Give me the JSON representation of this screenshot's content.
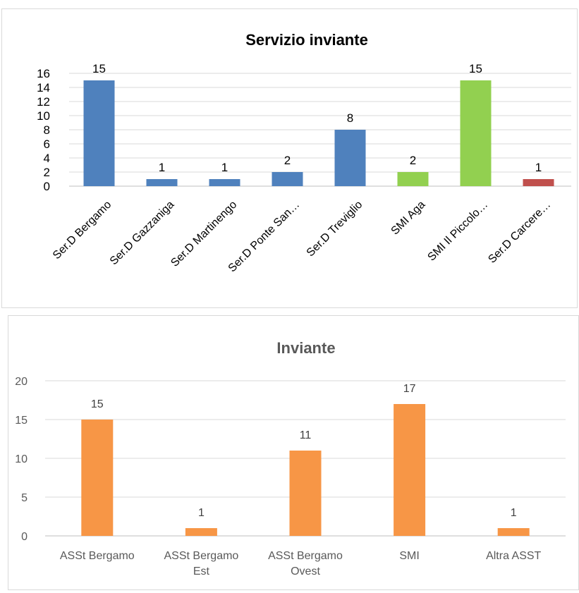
{
  "chart_data": [
    {
      "type": "bar",
      "title": "Servizio inviante",
      "categories": [
        "Ser.D Bergamo",
        "Ser.D Gazzaniga",
        "Ser.D Martinengo",
        "Ser.D Ponte San…",
        "Ser.D Treviglio",
        "SMI Aga",
        "SMI Il Piccolo…",
        "Ser.D Carcere…"
      ],
      "values": [
        15,
        1,
        1,
        2,
        8,
        2,
        15,
        1
      ],
      "bar_colors": [
        "#4f81bd",
        "#4f81bd",
        "#4f81bd",
        "#4f81bd",
        "#4f81bd",
        "#92d050",
        "#92d050",
        "#c0504d"
      ],
      "yticks": [
        "0",
        "2",
        "4",
        "6",
        "8",
        "10",
        "12",
        "14",
        "16"
      ],
      "ylim": [
        0,
        16
      ],
      "grid": true,
      "data_labels": true
    },
    {
      "type": "bar",
      "title": "Inviante",
      "categories": [
        [
          "ASSt Bergamo"
        ],
        [
          "ASSt Bergamo",
          "Est"
        ],
        [
          "ASSt Bergamo",
          "Ovest"
        ],
        [
          "SMI"
        ],
        [
          "Altra ASST"
        ]
      ],
      "values": [
        15,
        1,
        11,
        17,
        1
      ],
      "bar_color": "#f79646",
      "yticks": [
        "0",
        "5",
        "10",
        "15",
        "20"
      ],
      "ylim": [
        0,
        20
      ],
      "grid": true,
      "data_labels": true
    }
  ]
}
